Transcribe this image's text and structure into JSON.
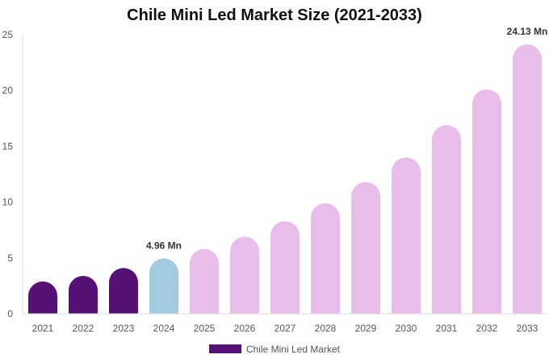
{
  "chart_data": {
    "type": "bar",
    "title": "Chile Mini Led Market Size (2021-2033)",
    "xlabel": "",
    "ylabel": "",
    "categories": [
      "2021",
      "2022",
      "2023",
      "2024",
      "2025",
      "2026",
      "2027",
      "2028",
      "2029",
      "2030",
      "2031",
      "2032",
      "2033"
    ],
    "series": [
      {
        "name": "Chile Mini Led Market",
        "values": [
          2.9,
          3.4,
          4.1,
          4.96,
          5.8,
          6.9,
          8.3,
          9.9,
          11.8,
          14.0,
          16.9,
          20.1,
          24.13
        ]
      }
    ],
    "bar_colors": [
      "#551175",
      "#551175",
      "#551175",
      "#a3cbdf",
      "#e8bde9",
      "#e8bde9",
      "#e8bde9",
      "#e8bde9",
      "#e8bde9",
      "#e8bde9",
      "#e8bde9",
      "#e8bde9",
      "#e8bde9"
    ],
    "legend_color": "#551175",
    "ylim": [
      0,
      25
    ],
    "yticks": [
      0,
      5,
      10,
      15,
      20,
      25
    ],
    "grid": false,
    "legend_position": "bottom",
    "annotations": [
      {
        "index": 3,
        "text": "4.96 Mn"
      },
      {
        "index": 12,
        "text": "24.13 Mn"
      }
    ]
  }
}
